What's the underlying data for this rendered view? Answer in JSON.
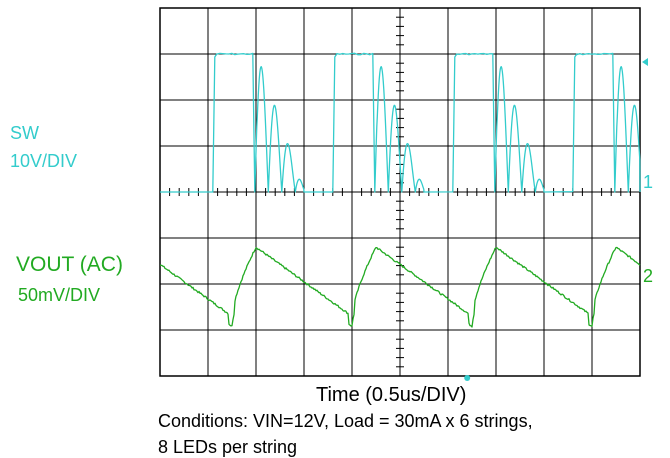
{
  "colors": {
    "sw": "#33cccc",
    "vout": "#22aa22",
    "grid": "#000000",
    "text": "#000000"
  },
  "chart_data": {
    "type": "line",
    "title": "",
    "xlabel": "Time (0.5us/DIV)",
    "conditions": [
      "Conditions: VIN=12V, Load = 30mA x 6 strings,",
      "8 LEDs per string"
    ],
    "grid": {
      "x_divisions": 10,
      "y_divisions": 8,
      "visible": true
    },
    "x_scale": "0.5us/DIV",
    "series": [
      {
        "name": "SW",
        "scale": "10V/DIV",
        "channel_marker": "1",
        "color": "#33cccc",
        "period_div": 2.5,
        "first_edge_div": 1.1,
        "high_width_div": 1.0,
        "high_level_div": 3.0,
        "ringing_end_div": 1.9,
        "baseline_div": 0
      },
      {
        "name": "VOUT (AC)",
        "scale": "50mV/DIV",
        "channel_marker": "2",
        "color": "#22aa22",
        "period_div": 2.5,
        "peak_offset_div": 0.0,
        "trough_offset_div": 2.0,
        "peak_div": 0.8,
        "trough_div": -0.7,
        "offset_div": -2.0
      }
    ]
  }
}
